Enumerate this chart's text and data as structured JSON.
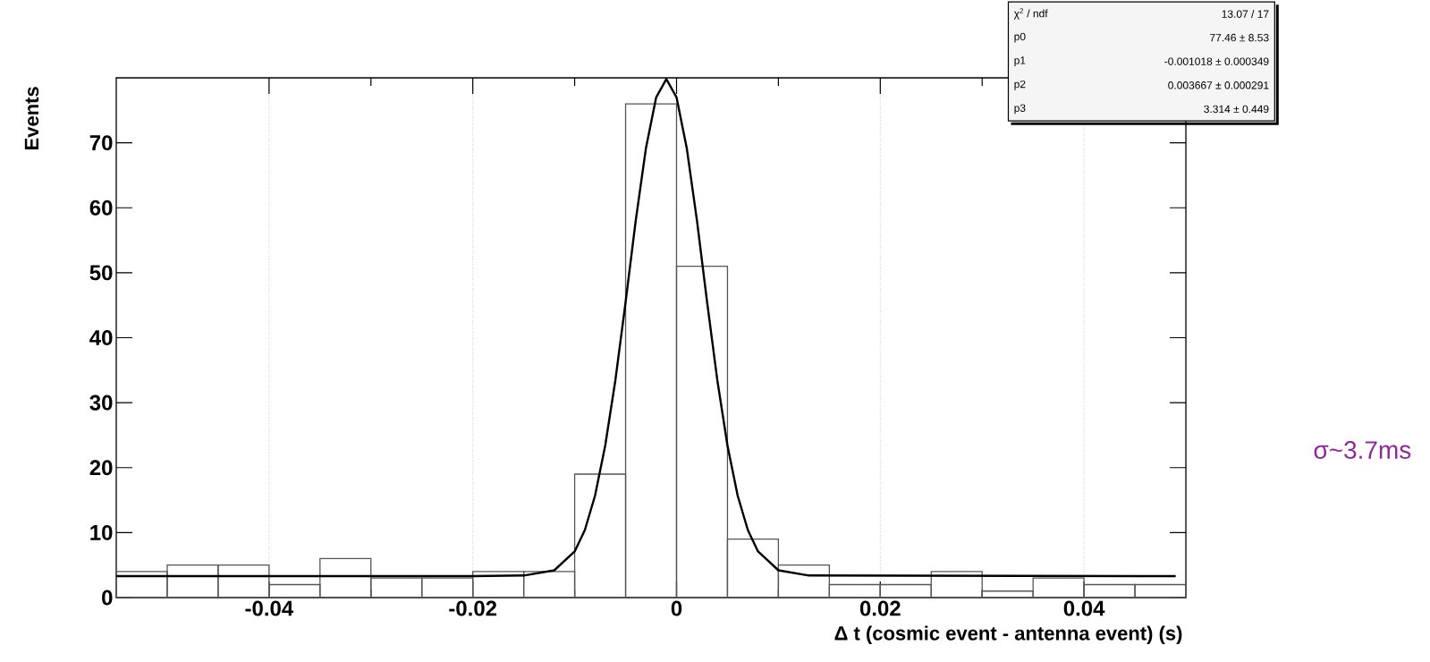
{
  "chart_data": {
    "type": "histogram",
    "xlabel": "Δ t   (cosmic event - antenna event) (s)",
    "ylabel": "Events",
    "bins": [
      -0.055,
      -0.05,
      -0.045,
      -0.04,
      -0.035,
      -0.03,
      -0.025,
      -0.02,
      -0.015,
      -0.01,
      -0.005,
      0,
      0.005,
      0.01,
      0.015,
      0.02,
      0.025,
      0.03,
      0.035,
      0.04,
      0.045,
      0.05
    ],
    "values": [
      4,
      5,
      5,
      2,
      6,
      3,
      3,
      4,
      4,
      19,
      76,
      51,
      9,
      5,
      2,
      2,
      4,
      1,
      3,
      2,
      2
    ],
    "color": "#555555",
    "series": [
      {
        "type": "line",
        "color": "#000000",
        "x": [
          -0.055,
          -0.02,
          -0.015,
          -0.012,
          -0.01,
          -0.009,
          -0.008,
          -0.007,
          -0.006,
          -0.005,
          -0.004,
          -0.003,
          -0.002,
          -0.001,
          0,
          0.001,
          0.002,
          0.003,
          0.004,
          0.005,
          0.006,
          0.007,
          0.008,
          0.01,
          0.013,
          0.049
        ],
        "values": [
          3.3,
          3.3,
          3.4,
          4.2,
          7.1,
          10.4,
          15.7,
          23.4,
          33.5,
          45.5,
          58.1,
          69.2,
          77.0,
          79.8,
          77.0,
          69.2,
          58.1,
          45.5,
          33.5,
          23.4,
          15.7,
          10.4,
          7.1,
          4.2,
          3.4,
          3.3
        ]
      }
    ],
    "xlim": [
      -0.055,
      0.05
    ],
    "ylim": [
      0,
      80
    ],
    "xticks": [
      -0.04,
      -0.02,
      0,
      0.02,
      0.04
    ],
    "yticks": [
      0,
      10,
      20,
      30,
      40,
      50,
      60,
      70
    ],
    "grid": "x",
    "annotations": [
      "χ$^{2}$ / ndf",
      "13.07 / 17",
      "p0",
      "77.46 ± 8.53",
      "p1",
      "-0.001018 ± 0.000349",
      "p2",
      "0.003667 ± 0.000291",
      "p3",
      "3.314 ± 0.449",
      "σ~3.7ms"
    ]
  }
}
